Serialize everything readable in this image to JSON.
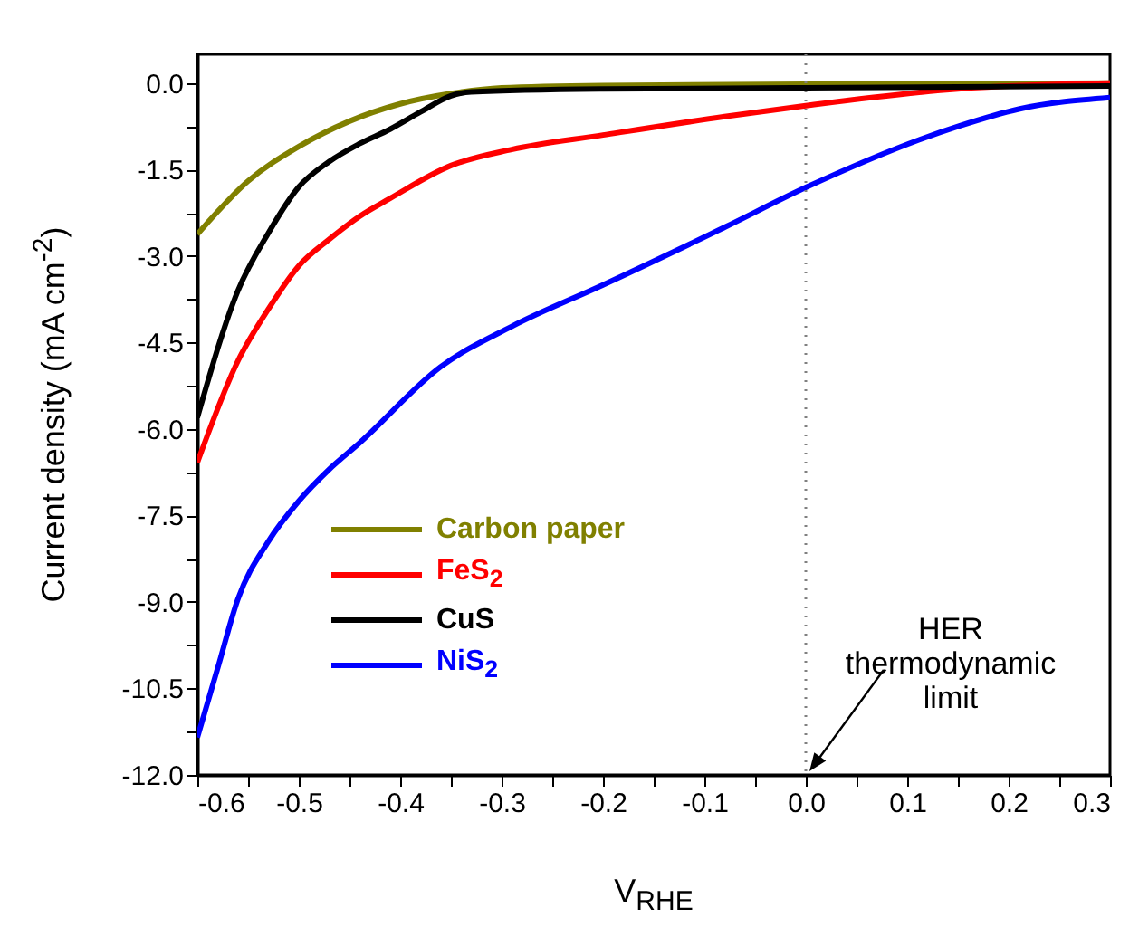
{
  "chart_data": {
    "type": "line",
    "xlabel": "V$_{RHE}$",
    "ylabel": "Current density (mA cm$^{-2}$)",
    "xlim": [
      -0.6,
      0.3
    ],
    "ylim": [
      -12,
      0.5
    ],
    "xticks": [
      -0.6,
      {
        "value": -0.55,
        "label": null
      },
      -0.5,
      {
        "value": -0.45,
        "label": null
      },
      -0.4,
      {
        "value": -0.35,
        "label": null
      },
      -0.3,
      {
        "value": -0.25,
        "label": null
      },
      -0.2,
      {
        "value": -0.15,
        "label": null
      },
      -0.1,
      {
        "value": -0.05,
        "label": null
      },
      {
        "value": 0,
        "label": "0.0"
      },
      {
        "value": 0.05,
        "label": null
      },
      0.1,
      {
        "value": 0.15,
        "label": null
      },
      0.2,
      {
        "value": 0.25,
        "label": null
      },
      0.3
    ],
    "yticks": [
      {
        "value": 0,
        "label": "0.0"
      },
      {
        "value": -0.75,
        "label": null
      },
      -1.5,
      {
        "value": -2.25,
        "label": null
      },
      {
        "value": -3,
        "label": "-3.0"
      },
      {
        "value": -3.75,
        "label": null
      },
      -4.5,
      {
        "value": -5.25,
        "label": null
      },
      {
        "value": -6,
        "label": "-6.0"
      },
      {
        "value": -6.75,
        "label": null
      },
      -7.5,
      {
        "value": -8.25,
        "label": null
      },
      {
        "value": -9,
        "label": "-9.0"
      },
      {
        "value": -9.75,
        "label": null
      },
      -10.5,
      {
        "value": -11.25,
        "label": null
      },
      {
        "value": -12,
        "label": "-12.0"
      }
    ],
    "grid": false,
    "legend": "bottom left",
    "marker": "none",
    "line_style": "solid",
    "ref_lines": [
      {
        "axis": "x",
        "value": 0,
        "color": "#808080",
        "line_style": "dotted"
      }
    ],
    "annotations": [
      {
        "text": "HER\nthermodynamic\nlimit",
        "x": 0,
        "y": -12
      }
    ],
    "series": [
      {
        "name": "Carbon paper",
        "color": "#808000",
        "x": [
          -0.6,
          -0.55,
          -0.5,
          -0.45,
          -0.4,
          -0.35,
          -0.3,
          -0.2,
          0,
          0.3
        ],
        "values": [
          -2.62,
          -1.7,
          -1.1,
          -0.66,
          -0.36,
          -0.18,
          -0.08,
          -0.04,
          -0.02,
          0
        ]
      },
      {
        "name": "FeS$_{2}$",
        "color": "#ff0000",
        "x": [
          -0.6,
          -0.56,
          -0.53,
          -0.5,
          -0.47,
          -0.44,
          -0.41,
          -0.35,
          -0.29,
          -0.2,
          -0.08,
          0,
          0.15,
          0.3
        ],
        "values": [
          -6.58,
          -4.82,
          -3.92,
          -3.17,
          -2.71,
          -2.31,
          -2.0,
          -1.43,
          -1.15,
          -0.9,
          -0.58,
          -0.39,
          -0.1,
          0
        ]
      },
      {
        "name": "CuS",
        "color": "#000000",
        "x": [
          -0.6,
          -0.56,
          -0.53,
          -0.5,
          -0.47,
          -0.44,
          -0.41,
          -0.38,
          -0.35,
          -0.33,
          -0.2,
          0,
          0.3
        ],
        "values": [
          -5.8,
          -3.6,
          -2.6,
          -1.8,
          -1.36,
          -1.05,
          -0.8,
          -0.5,
          -0.22,
          -0.15,
          -0.1,
          -0.08,
          -0.05
        ]
      },
      {
        "name": "NiS$_{2}$",
        "color": "#0000ff",
        "x": [
          -0.6,
          -0.58,
          -0.56,
          -0.53,
          -0.5,
          -0.47,
          -0.44,
          -0.36,
          -0.29,
          -0.2,
          -0.08,
          0,
          0.15,
          0.21,
          0.3
        ],
        "values": [
          -11.35,
          -10.15,
          -8.95,
          -7.95,
          -7.25,
          -6.7,
          -6.24,
          -4.92,
          -4.22,
          -3.5,
          -2.5,
          -1.81,
          -0.75,
          -0.45,
          -0.25
        ]
      }
    ]
  }
}
